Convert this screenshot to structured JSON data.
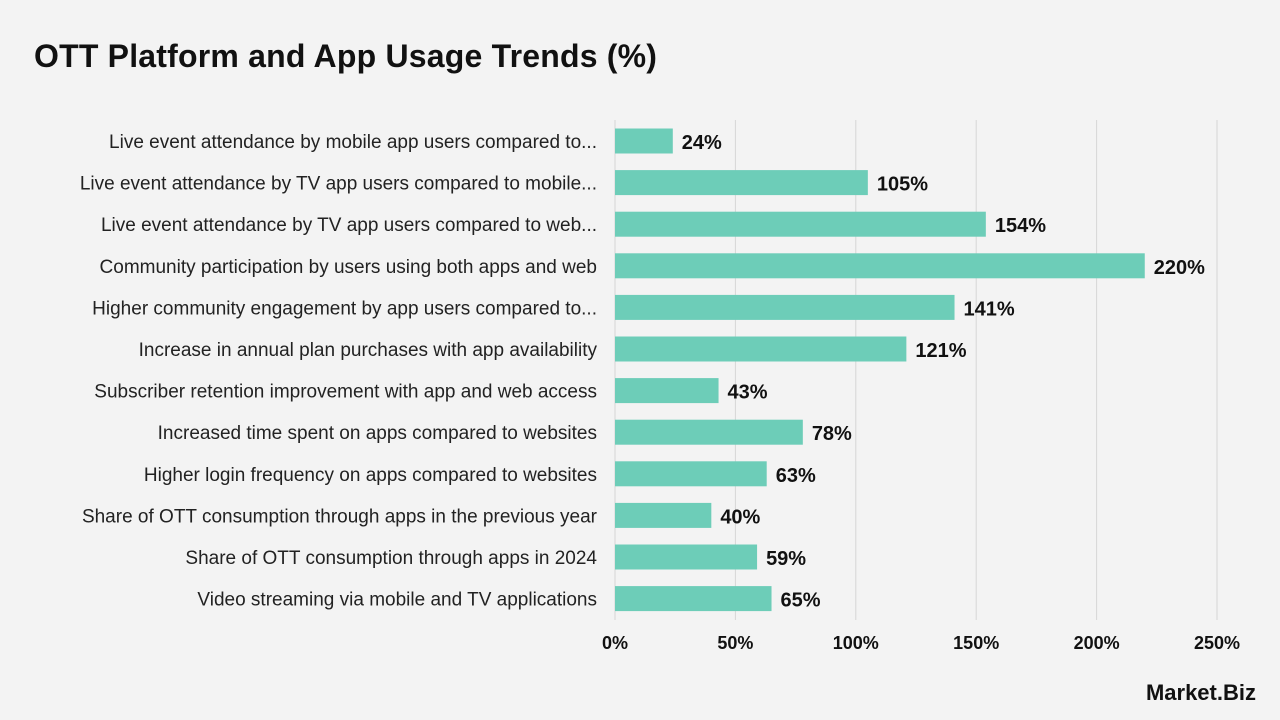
{
  "title": "OTT Platform and App Usage Trends (%)",
  "brand": {
    "logo_text": "Market.Biz"
  },
  "colors": {
    "bar": "#6dcdb8",
    "grid": "#d6d6d6",
    "text": "#111111",
    "background": "#f3f3f3"
  },
  "chart_data": {
    "type": "bar",
    "orientation": "horizontal",
    "title": "OTT Platform and App Usage Trends (%)",
    "categories": [
      "Live event attendance by mobile app users compared to...",
      "Live event attendance by TV app users compared to mobile...",
      "Live event attendance by TV app users compared to web...",
      "Community participation by users using both apps and web",
      "Higher community engagement by app users compared to...",
      "Increase in annual plan purchases with app availability",
      "Subscriber retention improvement with app and web access",
      "Increased time spent on apps compared to websites",
      "Higher login frequency on apps compared to websites",
      "Share of OTT consumption through apps in the previous year",
      "Share of OTT consumption through apps in 2024",
      "Video streaming via mobile and TV applications"
    ],
    "values": [
      24,
      105,
      154,
      220,
      141,
      121,
      43,
      78,
      63,
      40,
      59,
      65
    ],
    "value_labels": [
      "24%",
      "105%",
      "154%",
      "220%",
      "141%",
      "121%",
      "43%",
      "78%",
      "63%",
      "40%",
      "59%",
      "65%"
    ],
    "xlim": [
      0,
      250
    ],
    "xticks": [
      0,
      50,
      100,
      150,
      200,
      250
    ],
    "xtick_labels": [
      "0%",
      "50%",
      "100%",
      "150%",
      "200%",
      "250%"
    ],
    "grid": "vertical",
    "xlabel": "",
    "ylabel": ""
  }
}
